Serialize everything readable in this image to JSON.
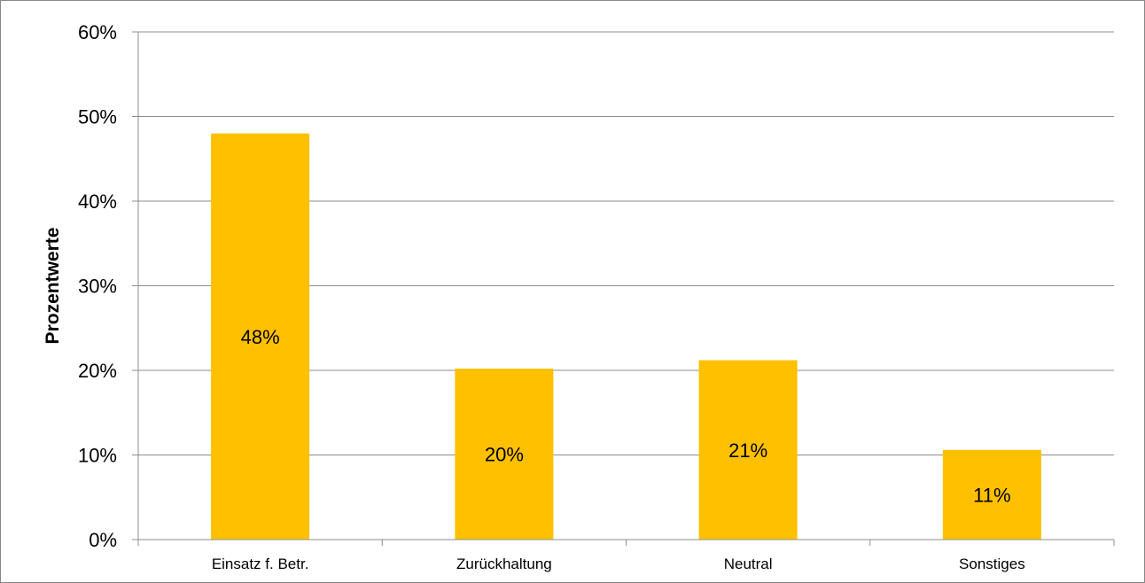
{
  "chart_data": {
    "type": "bar",
    "title": "",
    "xlabel": "",
    "ylabel": "Prozentwerte",
    "categories": [
      "Einsatz f. Betr.",
      "Zurückhaltung",
      "Neutral",
      "Sonstiges"
    ],
    "values": [
      48,
      20.2,
      21.2,
      10.6
    ],
    "data_labels": [
      "48%",
      "20%",
      "21%",
      "11%"
    ],
    "ylim": [
      0,
      60
    ],
    "yticks": [
      0,
      10,
      20,
      30,
      40,
      50,
      60
    ],
    "ytick_labels": [
      "0%",
      "10%",
      "20%",
      "30%",
      "40%",
      "50%",
      "60%"
    ],
    "bar_color": "#FFC000",
    "grid": true,
    "legend": "none"
  }
}
